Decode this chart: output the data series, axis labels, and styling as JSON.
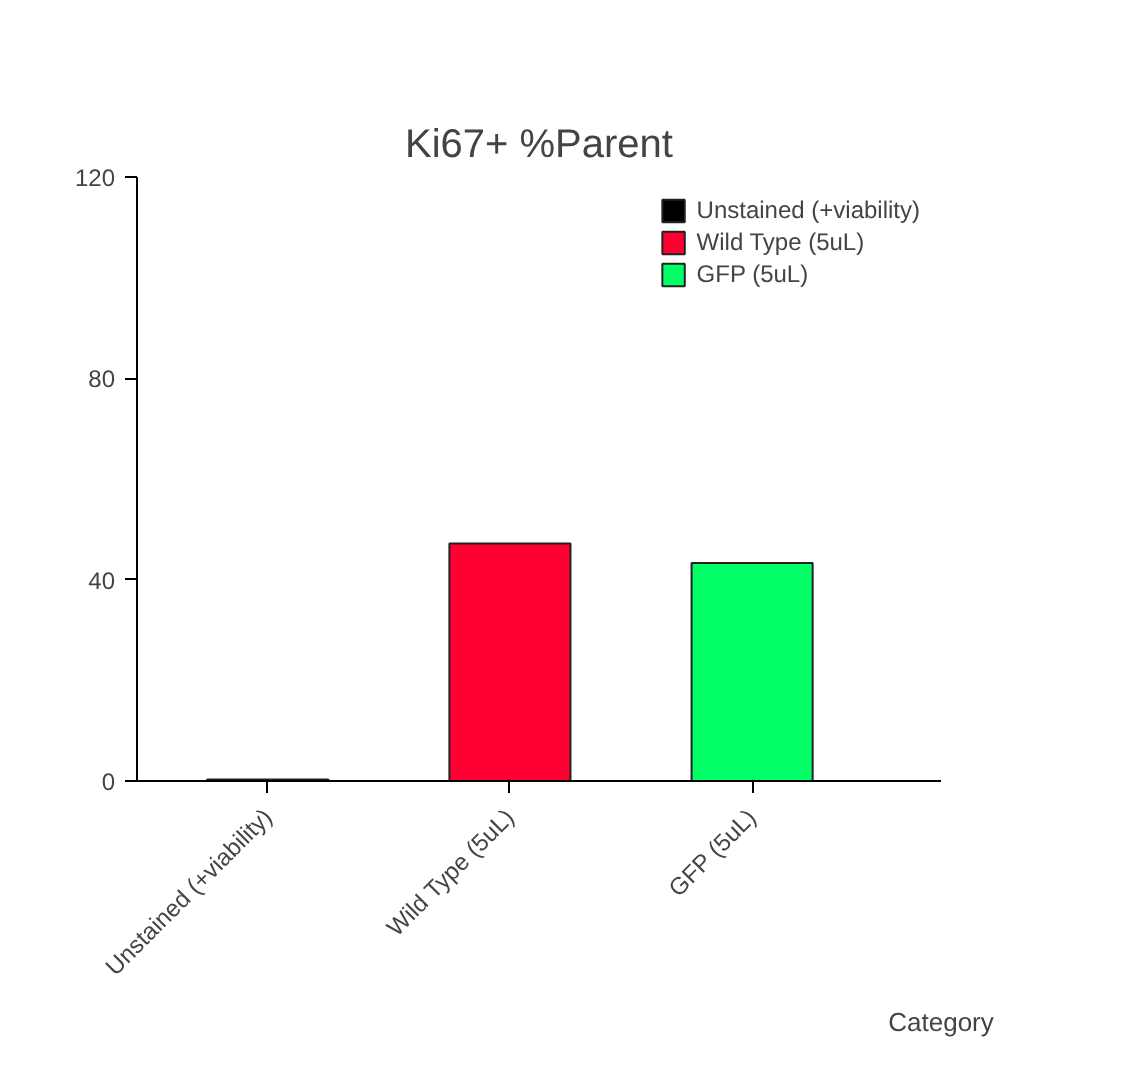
{
  "chart_data": {
    "type": "bar",
    "title": "Ki67+ %Parent",
    "xlabel": "Category",
    "categories": [
      "Unstained (+viability)",
      "Wild Type (5uL)",
      "GFP (5uL)"
    ],
    "series": [
      {
        "name": "Unstained (+viability)",
        "color": "#000000",
        "values": [
          0.3,
          null,
          null
        ]
      },
      {
        "name": "Wild Type (5uL)",
        "color": "#ff0033",
        "values": [
          null,
          47.2,
          null
        ]
      },
      {
        "name": "GFP (5uL)",
        "color": "#00ff66",
        "values": [
          null,
          null,
          43.3
        ]
      }
    ],
    "ylim": [
      0,
      120
    ],
    "yticks": [
      0,
      40,
      80,
      120
    ],
    "grid": false,
    "legend": "top right"
  }
}
